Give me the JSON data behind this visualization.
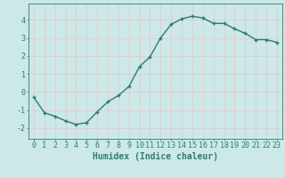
{
  "x": [
    0,
    1,
    2,
    3,
    4,
    5,
    6,
    7,
    8,
    9,
    10,
    11,
    12,
    13,
    14,
    15,
    16,
    17,
    18,
    19,
    20,
    21,
    22,
    23
  ],
  "y": [
    -0.3,
    -1.15,
    -1.35,
    -1.6,
    -1.8,
    -1.7,
    -1.1,
    -0.55,
    -0.2,
    0.3,
    1.4,
    1.95,
    3.0,
    3.75,
    4.05,
    4.2,
    4.1,
    3.8,
    3.8,
    3.5,
    3.25,
    2.9,
    2.9,
    2.75
  ],
  "xlabel": "Humidex (Indice chaleur)",
  "xlim": [
    -0.5,
    23.5
  ],
  "ylim": [
    -2.6,
    4.9
  ],
  "yticks": [
    -2,
    -1,
    0,
    1,
    2,
    3,
    4
  ],
  "xticks": [
    0,
    1,
    2,
    3,
    4,
    5,
    6,
    7,
    8,
    9,
    10,
    11,
    12,
    13,
    14,
    15,
    16,
    17,
    18,
    19,
    20,
    21,
    22,
    23
  ],
  "line_color": "#2d7d6e",
  "marker": "+",
  "bg_color": "#cce8e8",
  "grid_color": "#e8c8c8",
  "axis_color": "#2d7d6e",
  "xlabel_fontsize": 7,
  "tick_fontsize": 6,
  "marker_size": 3.5,
  "linewidth": 1.0
}
